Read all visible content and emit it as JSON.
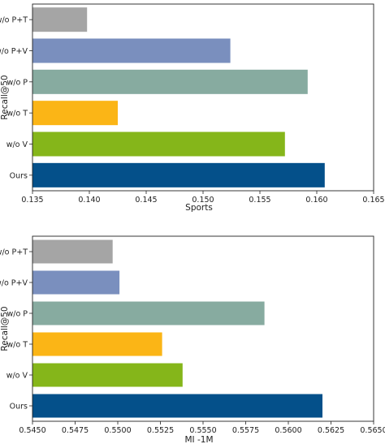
{
  "chart_data": [
    {
      "type": "bar",
      "orientation": "horizontal",
      "xlabel": "Sports",
      "ylabel": "Recall@50",
      "xlim": [
        0.135,
        0.165
      ],
      "xticks": [
        "0.135",
        "0.140",
        "0.145",
        "0.150",
        "0.155",
        "0.160",
        "0.165"
      ],
      "grid": false,
      "categories": [
        "w/o P+T",
        "w/o P+V",
        "w/o P",
        "w/o T",
        "w/o V",
        "Ours"
      ],
      "values": [
        0.1398,
        0.1524,
        0.1592,
        0.1425,
        0.1572,
        0.1607
      ],
      "colors": [
        "#a5a5a5",
        "#7a8fbe",
        "#87aba0",
        "#fbb516",
        "#85b61a",
        "#04508a"
      ]
    },
    {
      "type": "bar",
      "orientation": "horizontal",
      "xlabel": "MI -1M",
      "ylabel": "Recall@50",
      "xlim": [
        0.545,
        0.565
      ],
      "xticks": [
        "0.5450",
        "0.5475",
        "0.5500",
        "0.5525",
        "0.5550",
        "0.5575",
        "0.5600",
        "0.5625",
        "0.5650"
      ],
      "grid": false,
      "categories": [
        "w/o P+T",
        "w/o P+V",
        "w/o P",
        "w/o T",
        "w/o V",
        "Ours"
      ],
      "values": [
        0.5497,
        0.5501,
        0.5586,
        0.5526,
        0.5538,
        0.562
      ],
      "colors": [
        "#a5a5a5",
        "#7a8fbe",
        "#87aba0",
        "#fbb516",
        "#85b61a",
        "#04508a"
      ]
    }
  ]
}
